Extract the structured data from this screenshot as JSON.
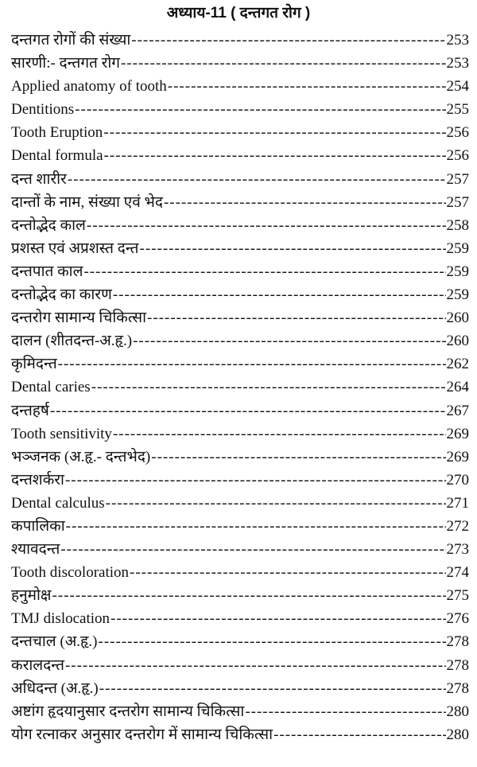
{
  "title": "अध्याय-11 ( दन्तगत रोग )",
  "entries": [
    {
      "label": "दन्तगत रोगों की संख्या",
      "page": "253"
    },
    {
      "label": "सारणी:- दन्तगत रोग",
      "page": "253"
    },
    {
      "label": "Applied anatomy of tooth",
      "page": "254"
    },
    {
      "label": "Dentitions",
      "page": "255"
    },
    {
      "label": "Tooth Eruption",
      "page": "256"
    },
    {
      "label": "Dental formula",
      "page": "256"
    },
    {
      "label": "दन्त शारीर",
      "page": "257"
    },
    {
      "label": "दान्तों के नाम, संख्या एवं भेद",
      "page": "257"
    },
    {
      "label": "दन्तोद्भेद काल",
      "page": "258"
    },
    {
      "label": "प्रशस्त एवं अप्रशस्त दन्त",
      "page": "259"
    },
    {
      "label": "दन्तपात काल",
      "page": "259"
    },
    {
      "label": "दन्तोद्भेद का कारण",
      "page": "259"
    },
    {
      "label": "दन्तरोग सामान्य चिकित्सा",
      "page": "260"
    },
    {
      "label": "दालन (शीतदन्त-अ.हृ.)",
      "page": "260"
    },
    {
      "label": "कृमिदन्त",
      "page": "262"
    },
    {
      "label": "Dental caries",
      "page": "264"
    },
    {
      "label": "दन्तहर्ष",
      "page": "267"
    },
    {
      "label": "Tooth sensitivity",
      "page": "269"
    },
    {
      "label": "भञ्जनक (अ.हृ.- दन्तभेद)",
      "page": "269"
    },
    {
      "label": "दन्तशर्करा",
      "page": "270"
    },
    {
      "label": "Dental calculus",
      "page": "271"
    },
    {
      "label": "कपालिका",
      "page": "272"
    },
    {
      "label": "श्यावदन्त",
      "page": "273"
    },
    {
      "label": "Tooth discoloration",
      "page": "274"
    },
    {
      "label": "हनुमोक्ष",
      "page": "275"
    },
    {
      "label": "TMJ  dislocation",
      "page": "276"
    },
    {
      "label": "दन्तचाल (अ.हृ.)",
      "page": "278"
    },
    {
      "label": "करालदन्त",
      "page": "278"
    },
    {
      "label": "अधिदन्त (अ.हृ.)",
      "page": "278"
    },
    {
      "label": "अष्टांग हृदयानुसार दन्तरोग सामान्य चिकित्सा",
      "page": "280"
    },
    {
      "label": "योग रत्नाकर अनुसार दन्तरोग में सामान्य चिकित्सा",
      "page": "280"
    }
  ]
}
